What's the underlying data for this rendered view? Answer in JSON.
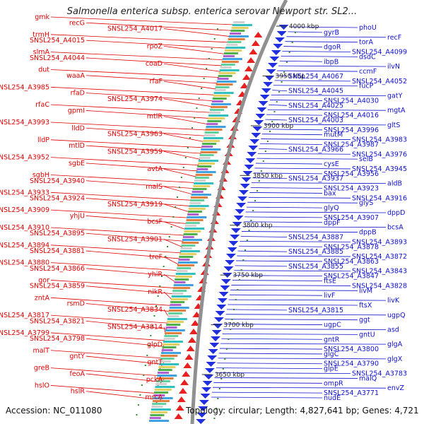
{
  "title": "Salmonella enterica subsp. enterica serovar Newport str. SL2...",
  "footer": {
    "accession_label": "Accession:",
    "accession": "NC_011080",
    "topology_label": "Topology:",
    "topology": "circular",
    "length_label": "Length:",
    "length": "4,827,641 bp",
    "genes_label": "Genes:",
    "genes": "4,721"
  },
  "colors": {
    "left_labels": "#e00000",
    "right_labels": "#1010d0",
    "backbone": "#909090",
    "forward_genes": "#e82020",
    "reverse_genes": "#2030e0",
    "tick_dots": "#2e8b2e"
  },
  "scale_ticks": [
    "4000 kbp",
    "3950 kbp",
    "3900 kbp",
    "3850 kbp",
    "3800 kbp",
    "3750 kbp",
    "3700 kbp",
    "3650 kbp"
  ],
  "left_labels": [
    "gmk",
    "recG",
    "SNSL254_A4017",
    "trmH",
    "SNSL254_A4015",
    "rpoZ",
    "slmA",
    "SNSL254_A4044",
    "coaD",
    "dut",
    "waaA",
    "rfaF",
    "SNSL254_A3985",
    "rfaD",
    "SNSL254_A3974",
    "rfaC",
    "gpmI",
    "mtlR",
    "SNSL254_A3993",
    "lldD",
    "SNSL254_A3963",
    "lldP",
    "mtlD",
    "SNSL254_A3959",
    "SNSL254_A3952",
    "sgbE",
    "avtA",
    "sgbH",
    "SNSL254_A3940",
    "malS",
    "SNSL254_A3933",
    "SNSL254_A3924",
    "SNSL254_A3919",
    "SNSL254_A3909",
    "yhjU",
    "bcsF",
    "SNSL254_A3910",
    "SNSL254_A3895",
    "SNSL254_A3901",
    "SNSL254_A3894",
    "SNSL254_A3881",
    "treF",
    "SNSL254_A3880",
    "SNSL254_A3866",
    "yhiR",
    "gor",
    "SNSL254_A3859",
    "nikR",
    "zntA",
    "rsmD",
    "SNSL254_A3834",
    "SNSL254_A3817",
    "SNSL254_A3821",
    "SNSL254_A3814",
    "SNSL254_A3799",
    "SNSL254_A3798",
    "glpD",
    "malT",
    "gntY",
    "gntT",
    "greB",
    "feoA",
    "pckA",
    "hslO",
    "hslR",
    "mrcA"
  ],
  "right_labels": [
    "phoU",
    "gyrB",
    "recF",
    "torA",
    "dgoR",
    "SNSL254_A4099",
    "dsdC",
    "ibpB",
    "ilvN",
    "ccmF",
    "SNSL254_A4067",
    "SNSL254_A4052",
    "fucP",
    "SNSL254_A4045",
    "gatY",
    "SNSL254_A4030",
    "SNSL254_A4025",
    "mgtA",
    "SNSL254_A4016",
    "SNSL254_A4003",
    "gltS",
    "SNSL254_A3996",
    "mutM",
    "SNSL254_A3983",
    "SNSL254_A3987",
    "SNSL254_A3966",
    "SNSL254_A3976",
    "selB",
    "cysE",
    "SNSL254_A3945",
    "SNSL254_A3956",
    "SNSL254_A3937",
    "aldB",
    "SNSL254_A3923",
    "bax",
    "SNSL254_A3916",
    "glyS",
    "glyQ",
    "dppD",
    "SNSL254_A3907",
    "dppF",
    "bcsA",
    "dppB",
    "SNSL254_A3887",
    "SNSL254_A3893",
    "SNSL254_A3878",
    "SNSL254_A3885",
    "SNSL254_A3872",
    "SNSL254_A3863",
    "SNSL254_A3855",
    "SNSL254_A3843",
    "SNSL254_A3847",
    "ftsE",
    "SNSL254_A3828",
    "livM",
    "livF",
    "livK",
    "ftsX",
    "SNSL254_A3815",
    "ugpQ",
    "ggt",
    "ugpC",
    "asd",
    "gntU",
    "gntR",
    "glgA",
    "SNSL254_A3800",
    "glgC",
    "glgX",
    "SNSL254_A3790",
    "glpE",
    "SNSL254_A3783",
    "malQ",
    "ompR",
    "envZ",
    "SNSL254_A3771",
    "nudE"
  ]
}
